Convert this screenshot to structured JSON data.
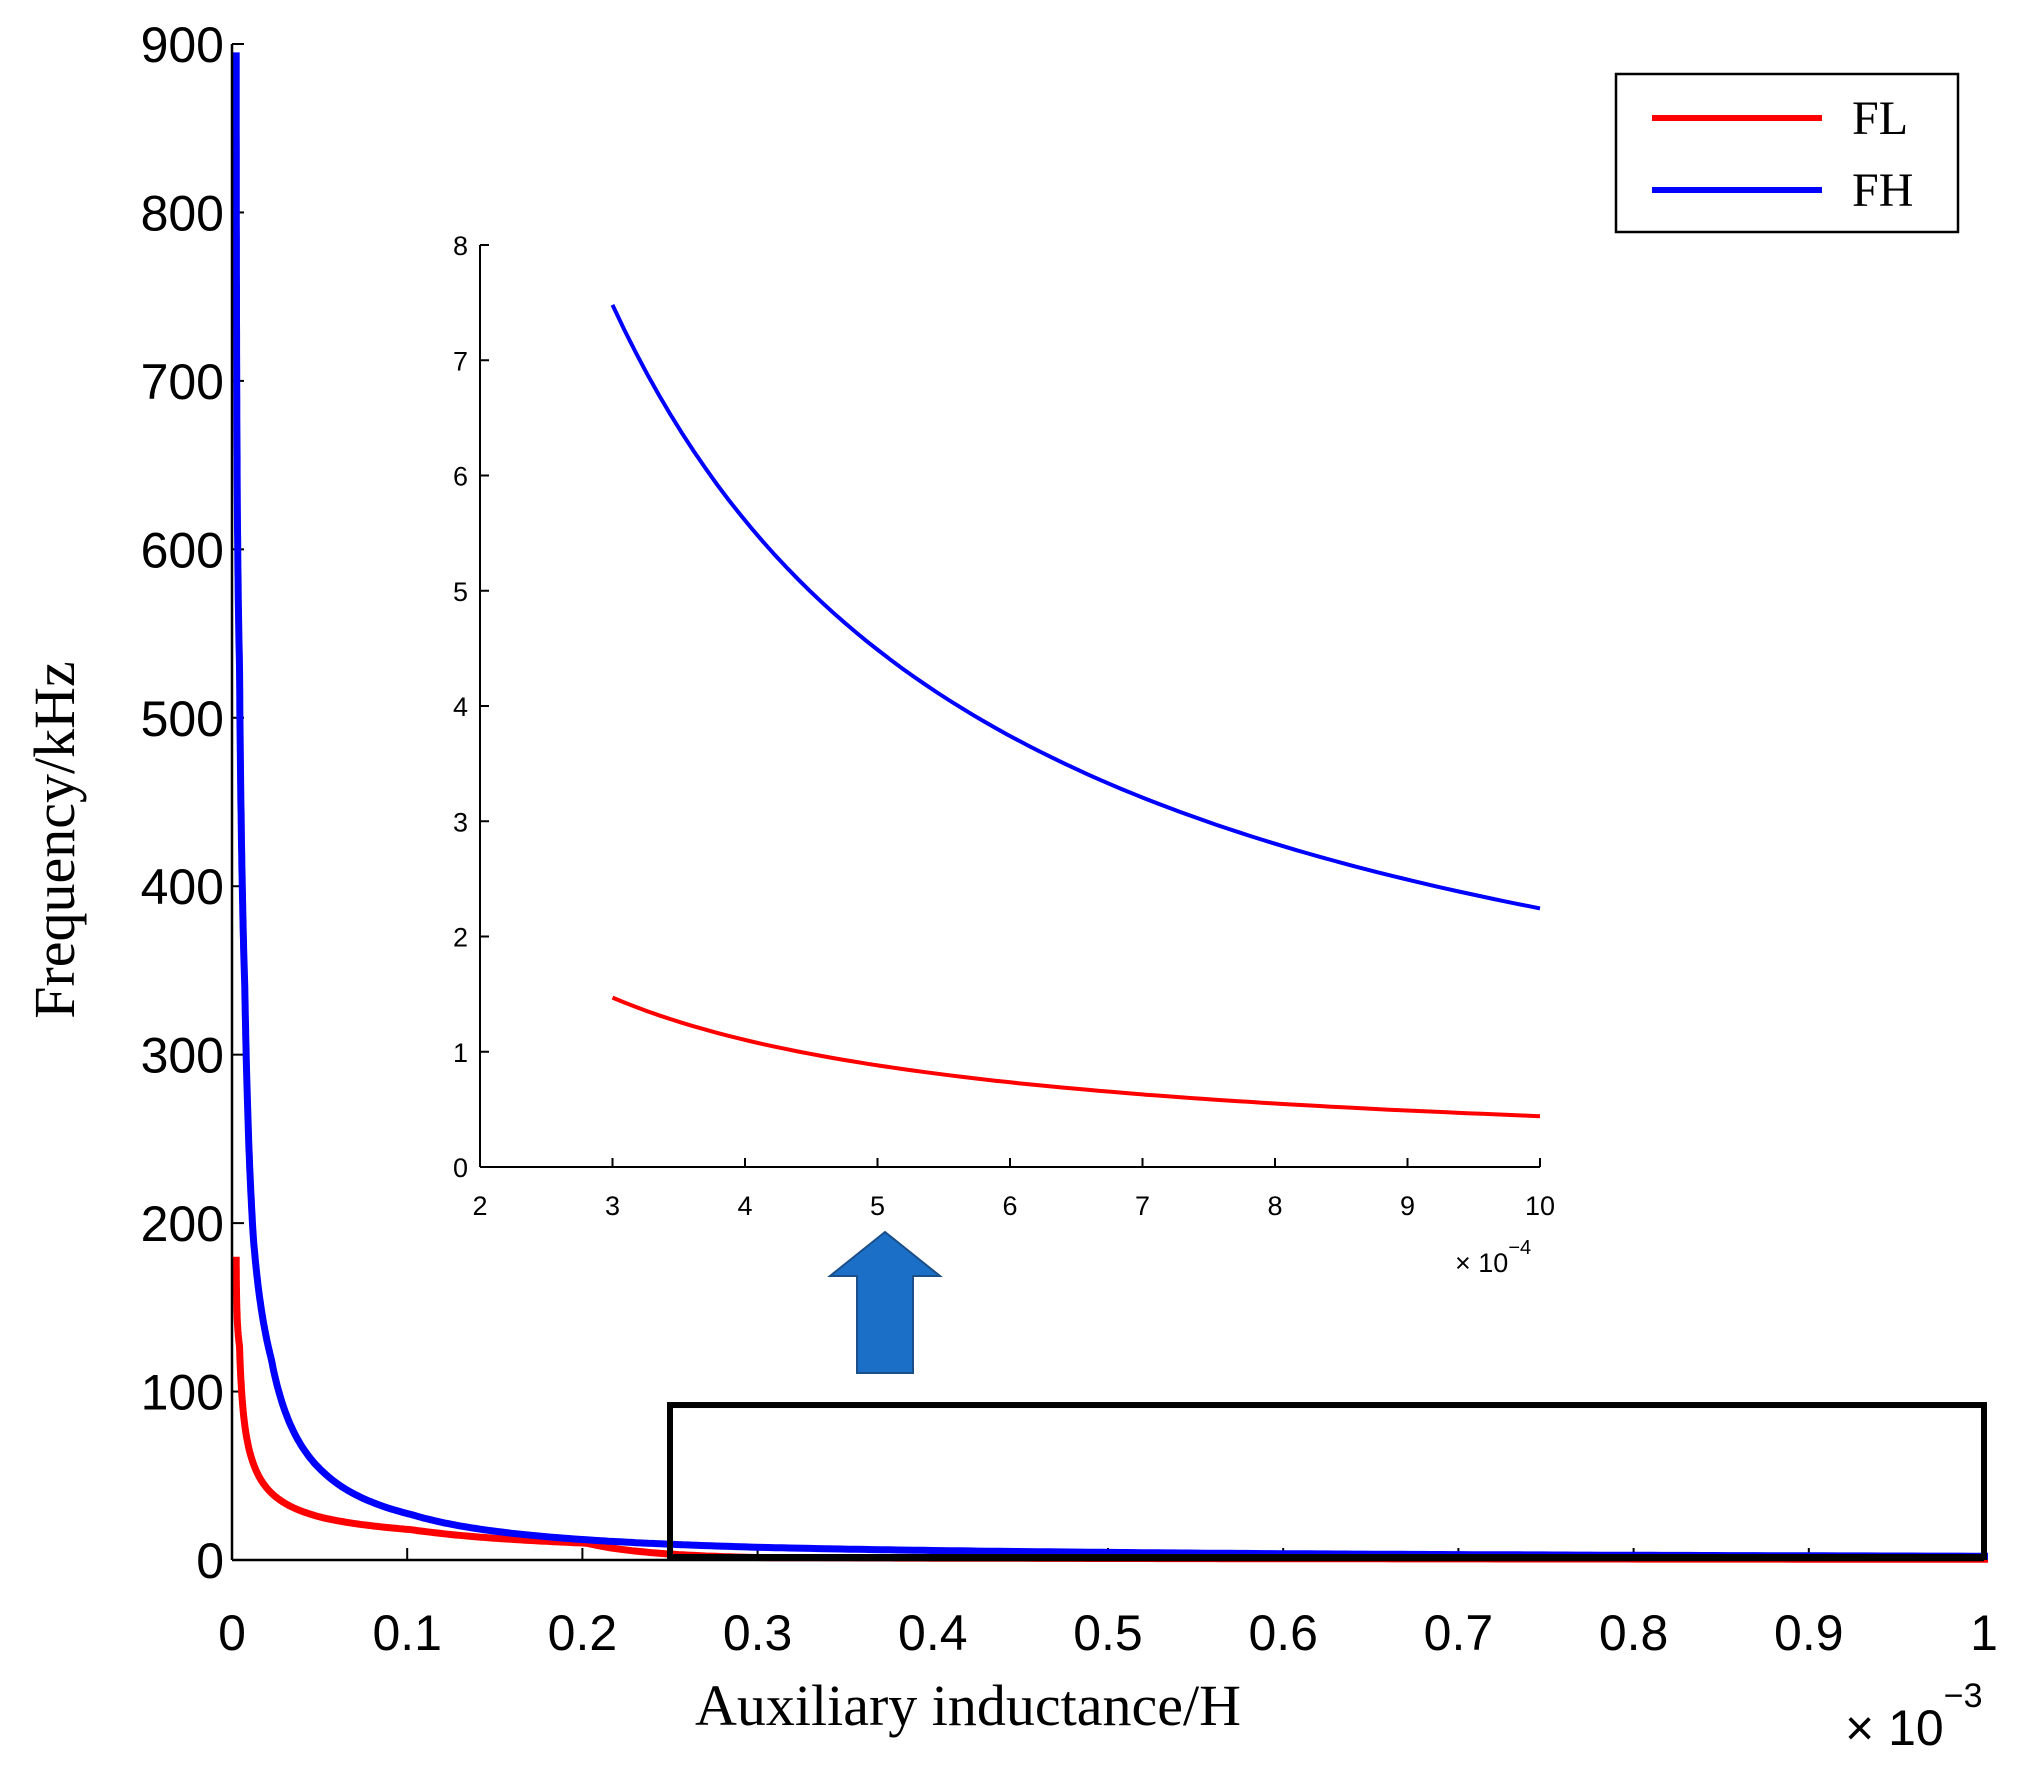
{
  "chart_data": {
    "type": "line",
    "xlabel": "Auxiliary inductance/H",
    "ylabel": "Frequency/kHz",
    "x_multiplier": "× 10",
    "x_exponent": "−3",
    "xlim": [
      0,
      1
    ],
    "ylim": [
      0,
      900
    ],
    "xticks": [
      "0",
      "0.1",
      "0.2",
      "0.3",
      "0.4",
      "0.5",
      "0.6",
      "0.7",
      "0.8",
      "0.9",
      "1"
    ],
    "yticks": [
      "0",
      "100",
      "200",
      "300",
      "400",
      "500",
      "600",
      "700",
      "800",
      "900"
    ],
    "series": [
      {
        "name": "FL",
        "color": "#ff0000",
        "x": [
          0.0001,
          0.002,
          0.005,
          0.01,
          0.02,
          0.05,
          0.1,
          0.2,
          0.3,
          0.5,
          0.7,
          1.0
        ],
        "y": [
          180,
          127,
          80,
          57,
          40,
          25,
          18,
          10,
          1.4,
          0.9,
          0.64,
          0.45
        ]
      },
      {
        "name": "FH",
        "color": "#0000ff",
        "x": [
          0.0001,
          0.002,
          0.005,
          0.01,
          0.02,
          0.05,
          0.1,
          0.2,
          0.3,
          0.5,
          0.7,
          1.0
        ],
        "y": [
          895,
          530,
          340,
          190,
          120,
          52,
          27,
          12,
          7.5,
          4.5,
          3.2,
          2.25
        ]
      }
    ],
    "legend": {
      "position": "top-right",
      "entries": [
        "FL",
        "FH"
      ]
    },
    "zoom_box": {
      "xlim": [
        0.25,
        1.0
      ],
      "ylim": [
        0,
        92
      ]
    },
    "inset": {
      "xlim": [
        2,
        10
      ],
      "ylim": [
        0,
        8
      ],
      "xticks": [
        "2",
        "3",
        "4",
        "5",
        "6",
        "7",
        "8",
        "9",
        "10"
      ],
      "yticks": [
        "0",
        "1",
        "2",
        "3",
        "4",
        "5",
        "6",
        "7",
        "8"
      ],
      "x_multiplier": "× 10",
      "x_exponent": "−4",
      "series": [
        {
          "name": "FL",
          "color": "#ff0000",
          "x_start": 3,
          "x_end": 10,
          "y_at_start": 1.47
        },
        {
          "name": "FH",
          "color": "#0000ff",
          "x_start": 3,
          "x_end": 10,
          "y_at_start": 7.48
        }
      ]
    },
    "arrow_color": "#1c6fc7"
  }
}
